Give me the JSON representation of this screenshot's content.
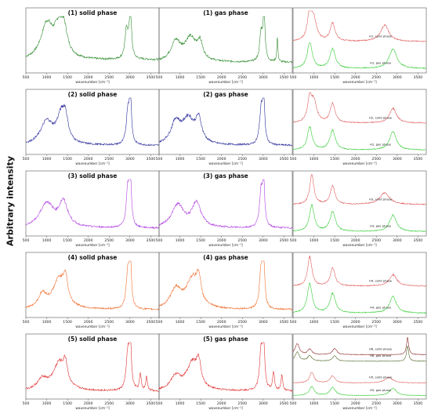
{
  "figure": {
    "ylabel": "Arbitrary intensity",
    "xlabel": "wavenumber [cm⁻¹]",
    "xticks": [
      500,
      1000,
      1500,
      2000,
      2500,
      3000,
      3500
    ],
    "xlim": [
      500,
      3700
    ]
  },
  "chart_data": [
    {
      "type": "line",
      "row": 0,
      "col": 0,
      "title": "(1) solid phase",
      "color": "#2e8b2e",
      "xlim": [
        500,
        3700
      ],
      "series": [
        {
          "color": "#2e8b2e",
          "peaks": [
            [
              1000,
              0.62,
              170
            ],
            [
              1300,
              0.55,
              150
            ],
            [
              1420,
              0.35,
              90
            ],
            [
              2920,
              0.55,
              45
            ],
            [
              3010,
              0.95,
              30
            ]
          ],
          "base": 0.18,
          "slope": 0.02
        }
      ]
    },
    {
      "type": "line",
      "row": 0,
      "col": 1,
      "title": "(1) gas phase",
      "color": "#2e8b2e",
      "xlim": [
        500,
        3700
      ],
      "series": [
        {
          "color": "#2e8b2e",
          "peaks": [
            [
              900,
              0.35,
              140
            ],
            [
              1250,
              0.42,
              170
            ],
            [
              1480,
              0.3,
              80
            ],
            [
              2950,
              0.5,
              40
            ],
            [
              3020,
              0.95,
              28
            ],
            [
              3340,
              0.45,
              16
            ]
          ],
          "base": 0.15,
          "slope": 0.0
        }
      ]
    },
    {
      "type": "line",
      "row": 0,
      "col": 2,
      "title": "",
      "xlim": [
        500,
        3700
      ],
      "series": [
        {
          "name": "H1, solid phase",
          "color": "#e06060",
          "offset": 0.42,
          "scale": 0.55,
          "peaks": [
            [
              900,
              0.9,
              60
            ],
            [
              1000,
              0.6,
              80
            ],
            [
              1450,
              0.55,
              70
            ],
            [
              2700,
              0.5,
              120
            ]
          ],
          "base": 0.12,
          "slope": 0.0
        },
        {
          "name": "H1, gas phase",
          "color": "#33cc33",
          "offset": 0.0,
          "scale": 0.55,
          "peaks": [
            [
              900,
              0.8,
              70
            ],
            [
              1450,
              0.6,
              80
            ],
            [
              2900,
              0.6,
              110
            ]
          ],
          "base": 0.06,
          "slope": 0.0
        }
      ]
    },
    {
      "type": "line",
      "row": 1,
      "col": 0,
      "title": "(2) solid phase",
      "color": "#2b2b9a",
      "xlim": [
        500,
        3700
      ],
      "series": [
        {
          "color": "#2b2b9a",
          "peaks": [
            [
              1000,
              0.42,
              180
            ],
            [
              1350,
              0.5,
              130
            ],
            [
              1450,
              0.35,
              70
            ],
            [
              2950,
              0.6,
              45
            ],
            [
              3010,
              0.95,
              28
            ]
          ],
          "base": 0.12,
          "slope": 0.0
        }
      ]
    },
    {
      "type": "line",
      "row": 1,
      "col": 1,
      "title": "(2) gas phase",
      "color": "#2b2b9a",
      "xlim": [
        500,
        3700
      ],
      "series": [
        {
          "color": "#2b2b9a",
          "peaks": [
            [
              900,
              0.4,
              140
            ],
            [
              1200,
              0.45,
              170
            ],
            [
              1450,
              0.42,
              90
            ],
            [
              2950,
              0.6,
              45
            ],
            [
              3010,
              0.95,
              28
            ]
          ],
          "base": 0.12,
          "slope": 0.0
        }
      ]
    },
    {
      "type": "line",
      "row": 1,
      "col": 2,
      "title": "",
      "xlim": [
        500,
        3700
      ],
      "series": [
        {
          "name": "H2, solid phase",
          "color": "#e06060",
          "offset": 0.42,
          "scale": 0.55,
          "peaks": [
            [
              900,
              0.7,
              60
            ],
            [
              1000,
              0.6,
              80
            ],
            [
              1450,
              0.6,
              70
            ],
            [
              2900,
              0.45,
              100
            ]
          ],
          "base": 0.12,
          "slope": 0.0
        },
        {
          "name": "H2, gas phase",
          "color": "#33cc33",
          "offset": 0.0,
          "scale": 0.55,
          "peaks": [
            [
              900,
              0.7,
              70
            ],
            [
              1450,
              0.6,
              80
            ],
            [
              2900,
              0.55,
              100
            ]
          ],
          "base": 0.06,
          "slope": 0.0
        }
      ]
    },
    {
      "type": "line",
      "row": 2,
      "col": 0,
      "title": "(3) solid phase",
      "color": "#b040e0",
      "xlim": [
        500,
        3700
      ],
      "series": [
        {
          "color": "#b040e0",
          "peaks": [
            [
              1000,
              0.45,
              200
            ],
            [
              1400,
              0.45,
              130
            ],
            [
              2950,
              0.7,
              45
            ],
            [
              3010,
              1.0,
              26
            ]
          ],
          "base": 0.1,
          "slope": 0.0
        }
      ]
    },
    {
      "type": "line",
      "row": 2,
      "col": 1,
      "title": "(3) gas phase",
      "color": "#b040e0",
      "xlim": [
        500,
        3700
      ],
      "series": [
        {
          "color": "#b040e0",
          "peaks": [
            [
              950,
              0.42,
              180
            ],
            [
              1400,
              0.45,
              130
            ],
            [
              2950,
              0.65,
              45
            ],
            [
              3010,
              0.95,
              26
            ]
          ],
          "base": 0.1,
          "slope": 0.0
        }
      ]
    },
    {
      "type": "line",
      "row": 2,
      "col": 2,
      "title": "",
      "xlim": [
        500,
        3700
      ],
      "series": [
        {
          "name": "H3, solid phase",
          "color": "#e06060",
          "offset": 0.42,
          "scale": 0.55,
          "peaks": [
            [
              950,
              0.9,
              60
            ],
            [
              1450,
              0.55,
              70
            ],
            [
              2700,
              0.35,
              150
            ]
          ],
          "base": 0.12,
          "slope": 0.0
        },
        {
          "name": "H3, gas phase",
          "color": "#33cc33",
          "offset": 0.0,
          "scale": 0.55,
          "peaks": [
            [
              950,
              0.8,
              70
            ],
            [
              1450,
              0.6,
              80
            ],
            [
              2900,
              0.5,
              100
            ]
          ],
          "base": 0.06,
          "slope": 0.0
        }
      ]
    },
    {
      "type": "line",
      "row": 3,
      "col": 0,
      "title": "(4) solid phase",
      "color": "#f07030",
      "xlim": [
        500,
        3700
      ],
      "series": [
        {
          "color": "#f07030",
          "peaks": [
            [
              900,
              0.25,
              120
            ],
            [
              1300,
              0.55,
              180
            ],
            [
              1450,
              0.4,
              60
            ],
            [
              2950,
              0.7,
              45
            ],
            [
              3010,
              1.0,
              26
            ]
          ],
          "base": 0.1,
          "slope": 0.0
        }
      ]
    },
    {
      "type": "line",
      "row": 3,
      "col": 1,
      "title": "(4) gas phase",
      "color": "#f07030",
      "xlim": [
        500,
        3700
      ],
      "series": [
        {
          "color": "#f07030",
          "peaks": [
            [
              900,
              0.35,
              150
            ],
            [
              1300,
              0.55,
              180
            ],
            [
              1450,
              0.4,
              60
            ],
            [
              2950,
              0.7,
              45
            ],
            [
              3010,
              1.0,
              26
            ]
          ],
          "base": 0.1,
          "slope": 0.0
        }
      ]
    },
    {
      "type": "line",
      "row": 3,
      "col": 2,
      "title": "",
      "xlim": [
        500,
        3700
      ],
      "series": [
        {
          "name": "H4, solid phase",
          "color": "#e06060",
          "offset": 0.42,
          "scale": 0.55,
          "peaks": [
            [
              900,
              0.9,
              60
            ],
            [
              1450,
              0.55,
              70
            ],
            [
              2900,
              0.35,
              110
            ]
          ],
          "base": 0.12,
          "slope": 0.0
        },
        {
          "name": "H4, gas phase",
          "color": "#33cc33",
          "offset": 0.0,
          "scale": 0.55,
          "peaks": [
            [
              900,
              0.9,
              70
            ],
            [
              1450,
              0.6,
              80
            ],
            [
              2900,
              0.5,
              100
            ]
          ],
          "base": 0.06,
          "slope": 0.0
        }
      ]
    },
    {
      "type": "line",
      "row": 4,
      "col": 0,
      "title": "(5) solid phase",
      "color": "#e03030",
      "xlim": [
        500,
        3700
      ],
      "series": [
        {
          "color": "#e03030",
          "peaks": [
            [
              900,
              0.2,
              150
            ],
            [
              1300,
              0.5,
              170
            ],
            [
              1450,
              0.35,
              60
            ],
            [
              2950,
              0.7,
              45
            ],
            [
              3010,
              0.95,
              26
            ],
            [
              3250,
              0.3,
              25
            ],
            [
              3400,
              0.25,
              25
            ]
          ],
          "base": 0.1,
          "slope": 0.0
        }
      ]
    },
    {
      "type": "line",
      "row": 4,
      "col": 1,
      "title": "(5) gas phase",
      "color": "#e03030",
      "xlim": [
        500,
        3700
      ],
      "series": [
        {
          "color": "#e03030",
          "peaks": [
            [
              900,
              0.25,
              150
            ],
            [
              1300,
              0.5,
              170
            ],
            [
              1450,
              0.38,
              60
            ],
            [
              2950,
              0.7,
              45
            ],
            [
              3010,
              1.0,
              26
            ],
            [
              3250,
              0.35,
              25
            ],
            [
              3450,
              0.3,
              25
            ]
          ],
          "base": 0.1,
          "slope": 0.0
        }
      ]
    },
    {
      "type": "line",
      "row": 4,
      "col": 2,
      "title": "",
      "xlim": [
        500,
        3700
      ],
      "series": [
        {
          "name": "H6, solid phase",
          "color": "#8b2a2a",
          "offset": 0.66,
          "scale": 0.3,
          "peaks": [
            [
              600,
              0.6,
              60
            ],
            [
              900,
              0.3,
              60
            ],
            [
              1500,
              0.35,
              60
            ],
            [
              3250,
              0.95,
              30
            ]
          ],
          "base": 0.15,
          "slope": 0.0
        },
        {
          "name": "H6, gas phase",
          "color": "#556b2f",
          "offset": 0.56,
          "scale": 0.3,
          "peaks": [
            [
              600,
              0.5,
              60
            ],
            [
              900,
              0.3,
              60
            ],
            [
              1500,
              0.3,
              60
            ],
            [
              3250,
              0.85,
              30
            ]
          ],
          "base": 0.12,
          "slope": 0.0
        },
        {
          "name": "H5, solid phase",
          "color": "#e06060",
          "offset": 0.2,
          "scale": 0.3,
          "peaks": [
            [
              950,
              0.6,
              60
            ],
            [
              1450,
              0.4,
              70
            ],
            [
              2800,
              0.3,
              120
            ]
          ],
          "base": 0.1,
          "slope": 0.0
        },
        {
          "name": "H5, gas phase",
          "color": "#33cc33",
          "offset": 0.0,
          "scale": 0.3,
          "peaks": [
            [
              950,
              0.5,
              70
            ],
            [
              1450,
              0.45,
              80
            ],
            [
              2900,
              0.4,
              100
            ]
          ],
          "base": 0.06,
          "slope": 0.0
        }
      ]
    }
  ]
}
